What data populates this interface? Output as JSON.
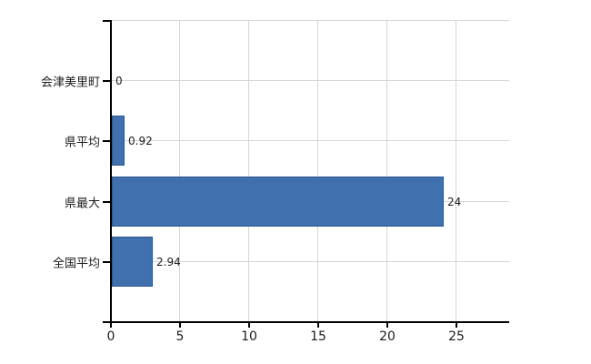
{
  "chart_data": {
    "type": "bar",
    "orientation": "horizontal",
    "title": "",
    "xlabel": "",
    "ylabel": "",
    "categories": [
      "会津美里町",
      "県平均",
      "県最大",
      "全国平均"
    ],
    "values": [
      0,
      0.92,
      24,
      2.94
    ],
    "value_labels": [
      "0",
      "0.92",
      "24",
      "2.94"
    ],
    "xlim": [
      0,
      28.9
    ],
    "xticks": [
      0,
      5,
      10,
      15,
      20,
      25
    ],
    "xtick_labels": [
      "0",
      "5",
      "10",
      "15",
      "20",
      "25"
    ],
    "grid": true,
    "legend": false,
    "colors": {
      "bar_fill": "#4070ad",
      "bar_border": "#2c5791",
      "gridline": "#d3d8d3",
      "axis": "#000000",
      "text": "#1c1c1c",
      "background": "#ffffff"
    }
  }
}
